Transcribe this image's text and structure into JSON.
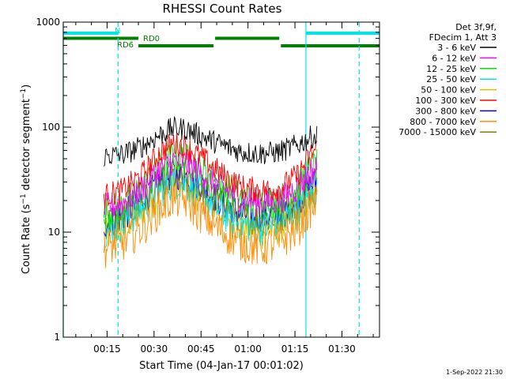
{
  "chart_data": {
    "type": "line",
    "title": "RHESSI Count Rates",
    "xlabel": "Start Time (04-Jan-17 00:01:02)",
    "ylabel": "Count Rate (s⁻¹ detector segment⁻¹)",
    "ylabel_parts": {
      "base": "Count Rate (s",
      "sup1": "−1",
      "mid": " detector segment",
      "sup2": "−1",
      "end": ")"
    },
    "x_unit": "minutes after 00:00",
    "xlim": [
      1,
      102
    ],
    "ylim": [
      1,
      1000
    ],
    "y_scale": "log",
    "grid": false,
    "legend_placement": "right",
    "x_ticks": [
      {
        "value": 15,
        "label": "00:15"
      },
      {
        "value": 30,
        "label": "00:30"
      },
      {
        "value": 45,
        "label": "00:45"
      },
      {
        "value": 60,
        "label": "01:00"
      },
      {
        "value": 75,
        "label": "01:15"
      },
      {
        "value": 90,
        "label": "01:30"
      }
    ],
    "y_ticks": [
      {
        "value": 1,
        "label": "1"
      },
      {
        "value": 10,
        "label": "10"
      },
      {
        "value": 100,
        "label": "100"
      },
      {
        "value": 1000,
        "label": "1000"
      }
    ],
    "legend_header": [
      "Det 3f,9f,",
      "FDecim 1, Att 3"
    ],
    "series": [
      {
        "name": "3 - 6 keV",
        "color": "#000000",
        "x": [
          14,
          20,
          26,
          32,
          36,
          40,
          46,
          52,
          58,
          64,
          70,
          76,
          80,
          82
        ],
        "values": [
          53,
          55,
          65,
          85,
          98,
          96,
          80,
          67,
          58,
          56,
          58,
          68,
          80,
          82
        ]
      },
      {
        "name": "6 - 12 keV",
        "color": "#ff00ff",
        "x": [
          14,
          20,
          26,
          32,
          36,
          40,
          46,
          52,
          58,
          64,
          70,
          76,
          80,
          82
        ],
        "values": [
          17,
          19,
          26,
          40,
          48,
          46,
          35,
          26,
          21,
          19,
          20,
          27,
          38,
          40
        ]
      },
      {
        "name": "12 - 25 keV",
        "color": "#00dd00",
        "x": [
          14,
          20,
          26,
          32,
          36,
          40,
          46,
          52,
          58,
          64,
          70,
          76,
          80,
          82
        ],
        "values": [
          15,
          18,
          26,
          42,
          53,
          50,
          37,
          27,
          21,
          19,
          20,
          27,
          40,
          43
        ]
      },
      {
        "name": "25 - 50 keV",
        "color": "#00e5e5",
        "x": [
          14,
          20,
          26,
          32,
          36,
          40,
          46,
          52,
          58,
          64,
          70,
          76,
          80,
          82
        ],
        "values": [
          10,
          12,
          17,
          25,
          30,
          29,
          22,
          15,
          12,
          11,
          12,
          16,
          22,
          24
        ]
      },
      {
        "name": "50 - 100 keV",
        "color": "#d4c200",
        "x": [
          14,
          20,
          26,
          32,
          36,
          40,
          46,
          52,
          58,
          64,
          70,
          76,
          80,
          82
        ],
        "values": [
          9,
          11,
          16,
          24,
          29,
          28,
          21,
          15,
          11,
          10,
          11,
          15,
          21,
          23
        ]
      },
      {
        "name": "100 - 300 keV",
        "color": "#ff0000",
        "x": [
          14,
          20,
          26,
          32,
          36,
          40,
          46,
          52,
          58,
          64,
          70,
          76,
          80,
          82
        ],
        "values": [
          22,
          25,
          35,
          58,
          70,
          66,
          49,
          35,
          27,
          25,
          26,
          35,
          55,
          62
        ]
      },
      {
        "name": "300 - 800 keV",
        "color": "#0000ff",
        "x": [
          14,
          20,
          26,
          32,
          36,
          40,
          46,
          52,
          58,
          64,
          70,
          76,
          80,
          82
        ],
        "values": [
          12,
          14,
          20,
          30,
          36,
          34,
          26,
          19,
          15,
          14,
          15,
          20,
          28,
          30
        ]
      },
      {
        "name": "800 - 7000 keV",
        "color": "#ff8c00",
        "x": [
          14,
          20,
          26,
          32,
          36,
          40,
          46,
          52,
          58,
          64,
          70,
          76,
          80,
          82
        ],
        "values": [
          7,
          8,
          11,
          17,
          21,
          20,
          14,
          10,
          8,
          7,
          8,
          11,
          17,
          19
        ]
      },
      {
        "name": "7000 - 15000 keV",
        "color": "#808000",
        "x": [
          14,
          20,
          26,
          32,
          36,
          40,
          46,
          52,
          58,
          64,
          70,
          76,
          80,
          82
        ],
        "values": [
          12,
          14,
          19,
          28,
          34,
          32,
          25,
          18,
          14,
          13,
          14,
          19,
          26,
          28
        ]
      }
    ],
    "flags": [
      {
        "label": "N",
        "color": "#00e5e5",
        "segments": [
          [
            1,
            18.5
          ],
          [
            78.5,
            102
          ]
        ]
      },
      {
        "label": "RD0",
        "color": "#008000",
        "segments": [
          [
            1,
            25
          ],
          [
            49.5,
            70
          ]
        ]
      },
      {
        "label": "RD6",
        "color": "#008000",
        "segments": [
          [
            25,
            49
          ],
          [
            70.5,
            102
          ]
        ]
      }
    ],
    "solid_vlines": [
      1,
      78.5
    ],
    "dashed_vlines": [
      18.5,
      95.5
    ],
    "timestamp": "1-Sep-2022 21:30"
  },
  "colors": {
    "background": "#ffffff",
    "axis": "#000000",
    "cyan": "#00e5e5",
    "green": "#008000"
  }
}
